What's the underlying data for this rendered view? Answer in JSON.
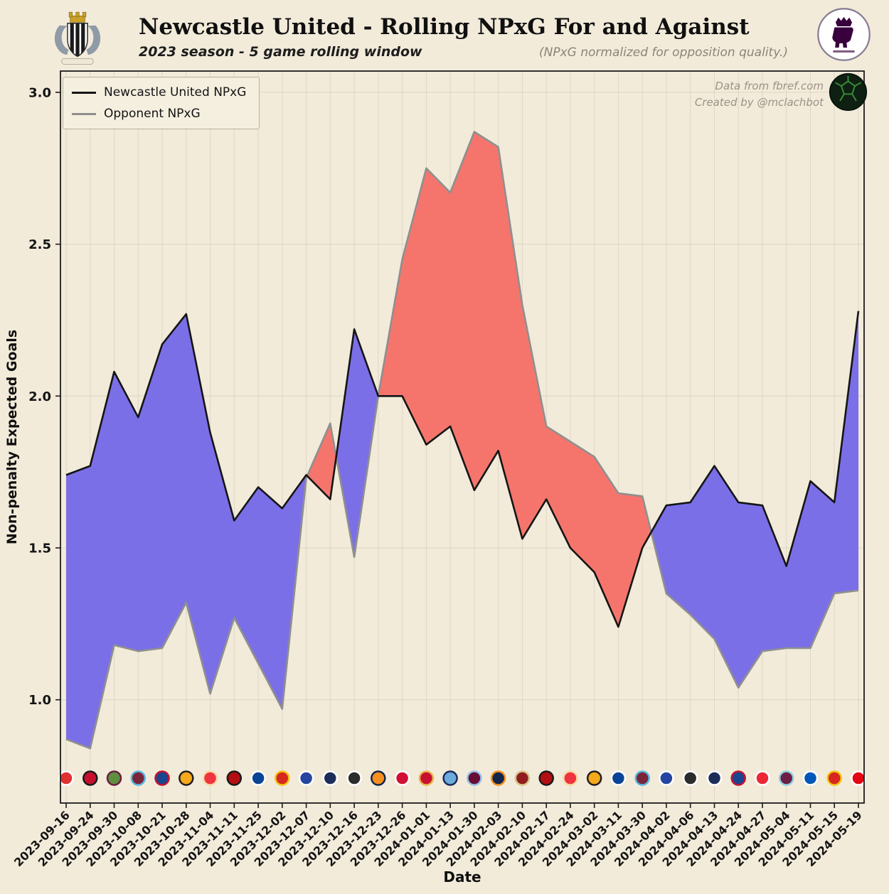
{
  "header": {
    "title": "Newcastle United - Rolling NPxG For and Against",
    "subtitle": "2023 season - 5 game rolling window",
    "note": "(NPxG normalized for opposition quality.)"
  },
  "credits": {
    "line1": "Data from fbref.com",
    "line2": "Created by @mclachbot"
  },
  "chart_data": {
    "type": "area",
    "title": "Newcastle United - Rolling NPxG For and Against",
    "subtitle": "2023 season - 5 game rolling window",
    "xlabel": "Date",
    "ylabel": "Non-penalty Expected Goals",
    "ylim": [
      0.66,
      3.07
    ],
    "yticks": [
      1.0,
      1.5,
      2.0,
      2.5,
      3.0
    ],
    "grid": true,
    "legend_position": "upper left",
    "categories": [
      "2023-09-16",
      "2023-09-24",
      "2023-09-30",
      "2023-10-08",
      "2023-10-21",
      "2023-10-28",
      "2023-11-04",
      "2023-11-11",
      "2023-11-25",
      "2023-12-02",
      "2023-12-07",
      "2023-12-10",
      "2023-12-16",
      "2023-12-23",
      "2023-12-26",
      "2024-01-01",
      "2024-01-13",
      "2024-01-30",
      "2024-02-03",
      "2024-02-10",
      "2024-02-17",
      "2024-02-24",
      "2024-03-02",
      "2024-03-11",
      "2024-03-30",
      "2024-04-02",
      "2024-04-06",
      "2024-04-13",
      "2024-04-24",
      "2024-04-27",
      "2024-05-04",
      "2024-05-11",
      "2024-05-15",
      "2024-05-19"
    ],
    "series": [
      {
        "name": "Newcastle United NPxG",
        "color": "#151515",
        "values": [
          1.74,
          1.77,
          2.08,
          1.93,
          2.17,
          2.27,
          1.88,
          1.59,
          1.7,
          1.63,
          1.74,
          1.66,
          2.22,
          2.0,
          2.0,
          1.84,
          1.9,
          1.69,
          1.82,
          1.53,
          1.66,
          1.5,
          1.42,
          1.24,
          1.5,
          1.64,
          1.65,
          1.77,
          1.65,
          1.64,
          1.44,
          1.72,
          1.65,
          2.28
        ]
      },
      {
        "name": "Opponent NPxG",
        "color": "#8f8f8f",
        "values": [
          0.87,
          0.84,
          1.18,
          1.16,
          1.17,
          1.32,
          1.02,
          1.27,
          1.12,
          0.97,
          1.73,
          1.91,
          1.47,
          2.0,
          2.45,
          2.75,
          2.67,
          2.87,
          2.82,
          2.3,
          1.9,
          1.85,
          1.8,
          1.68,
          1.67,
          1.35,
          1.28,
          1.2,
          1.04,
          1.16,
          1.17,
          1.17,
          1.35,
          1.36
        ]
      }
    ],
    "fill_colors": {
      "newcastle_above": "#7b6fe8",
      "opponent_above": "#f5756c"
    },
    "crest_row_y": 0.742,
    "match_crests": [
      [
        "#e03131",
        "#ffffff"
      ],
      [
        "#c8102e",
        "#1a1a1a"
      ],
      [
        "#5e8f3e",
        "#6c1d45"
      ],
      [
        "#7a263a",
        "#59b8e0"
      ],
      [
        "#1b458f",
        "#c4122e"
      ],
      [
        "#f5a91b",
        "#231f20"
      ],
      [
        "#ef3340",
        "#f8d9a0"
      ],
      [
        "#b50e12",
        "#1a1a1a"
      ],
      [
        "#0a4595",
        "#ffffff"
      ],
      [
        "#d6281e",
        "#f3c40f"
      ],
      [
        "#2545a0",
        "#ffffff"
      ],
      [
        "#1c2d5a",
        "#ffffff"
      ],
      [
        "#2b2b2b",
        "#ffffff"
      ],
      [
        "#f78f1e",
        "#12264a"
      ],
      [
        "#d21034",
        "#ffffff"
      ],
      [
        "#c8102e",
        "#e8b64f"
      ],
      [
        "#6cabdd",
        "#1c2c5b"
      ],
      [
        "#670e36",
        "#95bfe5"
      ],
      [
        "#12264a",
        "#f78f1e"
      ],
      [
        "#8f1d1d",
        "#d9c38a"
      ],
      [
        "#b50e12",
        "#1a1a1a"
      ],
      [
        "#ef3340",
        "#f8d9a0"
      ],
      [
        "#f5a91b",
        "#231f20"
      ],
      [
        "#0a4595",
        "#ffffff"
      ],
      [
        "#7a263a",
        "#59b8e0"
      ],
      [
        "#2545a0",
        "#ffffff"
      ],
      [
        "#2b2b2b",
        "#ffffff"
      ],
      [
        "#1c2d5a",
        "#ffffff"
      ],
      [
        "#1b458f",
        "#c4122e"
      ],
      [
        "#ee2737",
        "#ffffff"
      ],
      [
        "#6c1d45",
        "#8ecfe0"
      ],
      [
        "#0057b8",
        "#ffffff"
      ],
      [
        "#d6281e",
        "#f3c40f"
      ],
      [
        "#e30613",
        "#ffffff"
      ]
    ]
  }
}
